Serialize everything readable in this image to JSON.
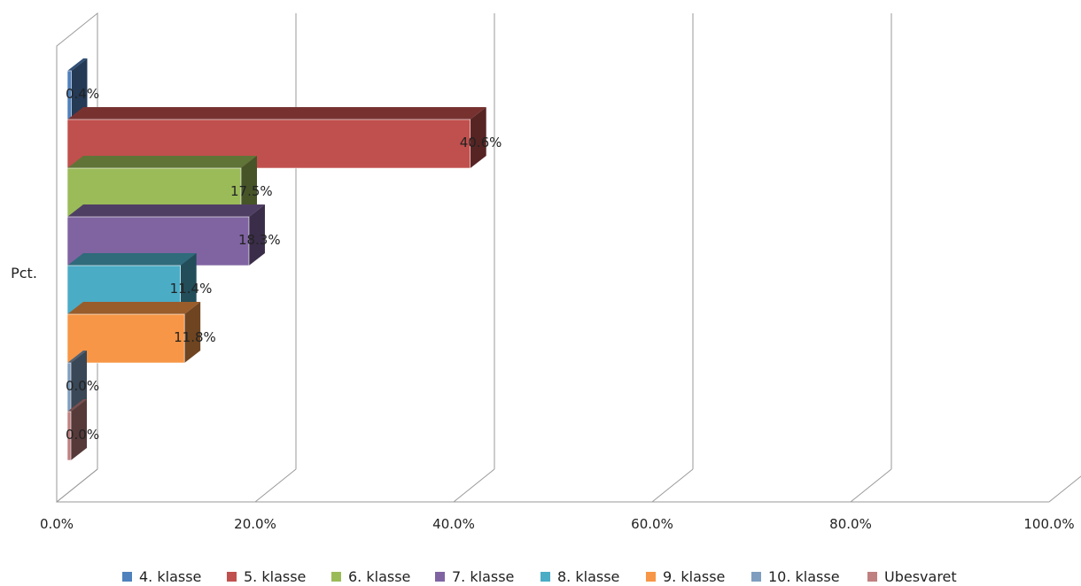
{
  "chart_data": {
    "type": "bar",
    "orientation": "horizontal",
    "style": "3d",
    "categories": [
      "Pct."
    ],
    "series": [
      {
        "name": "4. klasse",
        "values": [
          0.4
        ],
        "label": "0.4%",
        "color": "#4f81bd"
      },
      {
        "name": "5. klasse",
        "values": [
          40.6
        ],
        "label": "40.6%",
        "color": "#c0504d"
      },
      {
        "name": "6. klasse",
        "values": [
          17.5
        ],
        "label": "17.5%",
        "color": "#9bbb59"
      },
      {
        "name": "7. klasse",
        "values": [
          18.3
        ],
        "label": "18.3%",
        "color": "#8064a2"
      },
      {
        "name": "8. klasse",
        "values": [
          11.4
        ],
        "label": "11.4%",
        "color": "#4bacc6"
      },
      {
        "name": "9. klasse",
        "values": [
          11.8
        ],
        "label": "11.8%",
        "color": "#f79646"
      },
      {
        "name": "10. klasse",
        "values": [
          0.0
        ],
        "label": "0.0%",
        "color": "#7f9dbf"
      },
      {
        "name": "Ubesvaret",
        "values": [
          0.0
        ],
        "label": "0.0%",
        "color": "#c08080"
      }
    ],
    "xlim": [
      0,
      100
    ],
    "xticks": [
      "0.0%",
      "20.0%",
      "40.0%",
      "60.0%",
      "80.0%",
      "100.0%"
    ],
    "grid": true,
    "legend_position": "bottom"
  }
}
